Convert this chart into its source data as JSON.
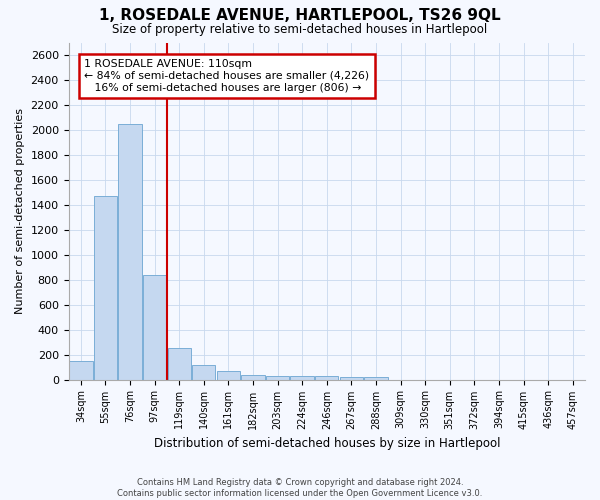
{
  "title": "1, ROSEDALE AVENUE, HARTLEPOOL, TS26 9QL",
  "subtitle": "Size of property relative to semi-detached houses in Hartlepool",
  "xlabel": "Distribution of semi-detached houses by size in Hartlepool",
  "ylabel": "Number of semi-detached properties",
  "bin_labels": [
    "34sqm",
    "55sqm",
    "76sqm",
    "97sqm",
    "119sqm",
    "140sqm",
    "161sqm",
    "182sqm",
    "203sqm",
    "224sqm",
    "246sqm",
    "267sqm",
    "288sqm",
    "309sqm",
    "330sqm",
    "351sqm",
    "372sqm",
    "394sqm",
    "415sqm",
    "436sqm",
    "457sqm"
  ],
  "bar_heights": [
    150,
    1470,
    2050,
    840,
    255,
    120,
    65,
    40,
    25,
    25,
    25,
    20,
    20,
    0,
    0,
    0,
    0,
    0,
    0,
    0
  ],
  "bar_color": "#c5d8f0",
  "bar_edgecolor": "#7aaed6",
  "grid_color": "#c8d8ee",
  "bg_color": "#f5f8ff",
  "property_size_bin": 3,
  "property_line_color": "#cc0000",
  "annotation_text": "1 ROSEDALE AVENUE: 110sqm\n← 84% of semi-detached houses are smaller (4,226)\n   16% of semi-detached houses are larger (806) →",
  "annotation_box_color": "#ffffff",
  "annotation_box_edgecolor": "#cc0000",
  "ylim": [
    0,
    2700
  ],
  "yticks": [
    0,
    200,
    400,
    600,
    800,
    1000,
    1200,
    1400,
    1600,
    1800,
    2000,
    2200,
    2400,
    2600
  ],
  "footnote": "Contains HM Land Registry data © Crown copyright and database right 2024.\nContains public sector information licensed under the Open Government Licence v3.0."
}
